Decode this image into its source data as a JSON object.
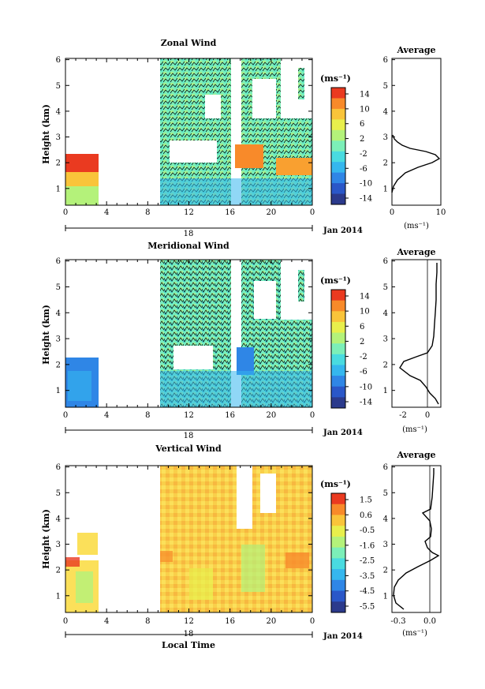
{
  "chart_data": [
    {
      "type": "heatmap",
      "title": "Zonal Wind",
      "ylabel": "Height (km)",
      "yticks": [
        "1",
        "2",
        "3",
        "4",
        "5",
        "6"
      ],
      "xticks": [
        "0",
        "4",
        "8",
        "12",
        "16",
        "20",
        "0"
      ],
      "date_label": "18",
      "month_label": "Jan 2014",
      "colorbar": {
        "unit": "(ms⁻¹)",
        "ticks": [
          "14",
          "10",
          "6",
          "2",
          "-2",
          "-6",
          "-10",
          "-14"
        ]
      },
      "profile": {
        "title": "Average",
        "xticks": [
          "0",
          "10"
        ],
        "xlabel": "(ms⁻¹)",
        "yticks": [
          "1",
          "2",
          "3",
          "4",
          "5",
          "6"
        ]
      }
    },
    {
      "type": "heatmap",
      "title": "Meridional Wind",
      "ylabel": "Height (km)",
      "yticks": [
        "1",
        "2",
        "3",
        "4",
        "5",
        "6"
      ],
      "xticks": [
        "0",
        "4",
        "8",
        "12",
        "16",
        "20",
        "0"
      ],
      "date_label": "18",
      "month_label": "Jan 2014",
      "colorbar": {
        "unit": "(ms⁻¹)",
        "ticks": [
          "14",
          "10",
          "6",
          "2",
          "-2",
          "-6",
          "-10",
          "-14"
        ]
      },
      "profile": {
        "title": "Average",
        "xticks": [
          "-2",
          "0"
        ],
        "xlabel": "(ms⁻¹)",
        "yticks": [
          "1",
          "2",
          "3",
          "4",
          "5",
          "6"
        ]
      }
    },
    {
      "type": "heatmap",
      "title": "Vertical Wind",
      "ylabel": "Height (km)",
      "xlabel": "Local Time",
      "yticks": [
        "1",
        "2",
        "3",
        "4",
        "5",
        "6"
      ],
      "xticks": [
        "0",
        "4",
        "8",
        "12",
        "16",
        "20",
        "0"
      ],
      "date_label": "18",
      "month_label": "Jan 2014",
      "colorbar": {
        "unit": "(ms⁻¹)",
        "ticks": [
          "1.5",
          "0.6",
          "-0.5",
          "-1.6",
          "-2.5",
          "-3.5",
          "-4.5",
          "-5.5"
        ]
      },
      "profile": {
        "title": "Average",
        "xticks": [
          "-0.3",
          "0.0"
        ],
        "xlabel": "(ms⁻¹)",
        "yticks": [
          "1",
          "2",
          "3",
          "4",
          "5",
          "6"
        ]
      }
    }
  ],
  "colors": {
    "colormap": [
      "#2b3a8c",
      "#2a57c8",
      "#2f86e6",
      "#35b7ee",
      "#49dbe0",
      "#7cefb8",
      "#b4f27a",
      "#e8ef4c",
      "#f9c43a",
      "#f88a2a",
      "#ea3a20"
    ]
  }
}
